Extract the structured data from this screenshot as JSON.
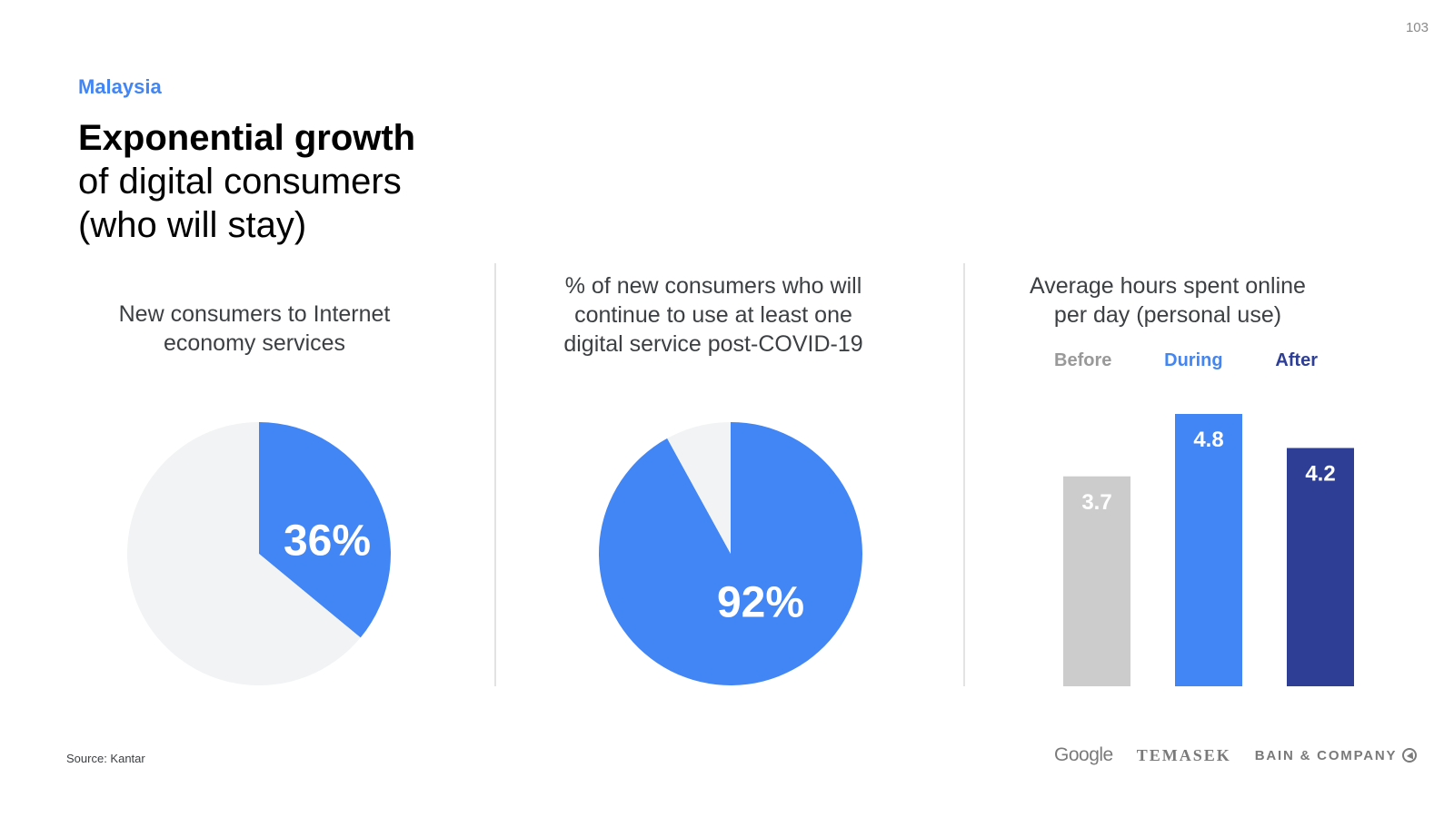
{
  "page_number": "103",
  "header": {
    "country": "Malaysia",
    "title_bold": "Exponential growth",
    "title_line2": "of digital consumers",
    "title_line3": "(who will stay)"
  },
  "colors": {
    "blue": "#4285f4",
    "light_grey": "#f1f3f4",
    "bar_before": "#cccccc",
    "bar_during": "#4285f4",
    "bar_after": "#2d3e94",
    "divider": "#e3e3e3"
  },
  "panels": {
    "left_title_line1": "New consumers to Internet",
    "left_title_line2": "economy services",
    "middle_title_line1": "% of new consumers who will",
    "middle_title_line2": "continue to use at least one",
    "middle_title_line3": "digital service post-COVID-19",
    "right_title_line1": "Average hours spent online",
    "right_title_line2": "per day (personal use)"
  },
  "chart_data": [
    {
      "type": "pie",
      "title": "New consumers to Internet economy services",
      "values": [
        36,
        64
      ],
      "data_label": "36%"
    },
    {
      "type": "pie",
      "title": "% of new consumers who will continue to use at least one digital service post-COVID-19",
      "values": [
        92,
        8
      ],
      "data_label": "92%"
    },
    {
      "type": "bar",
      "title": "Average hours spent online per day (personal use)",
      "categories": [
        "Before",
        "During",
        "After"
      ],
      "values": [
        3.7,
        4.8,
        4.2
      ],
      "data_labels": [
        "3.7",
        "4.8",
        "4.2"
      ],
      "legend": "top",
      "ylim": [
        0,
        4.8
      ]
    }
  ],
  "footer": {
    "source": "Source: Kantar",
    "logo_google": "Google",
    "logo_temasek": "TEMASEK",
    "logo_bain": "BAIN & COMPANY",
    "bain_icon": "bain-compass-icon"
  }
}
